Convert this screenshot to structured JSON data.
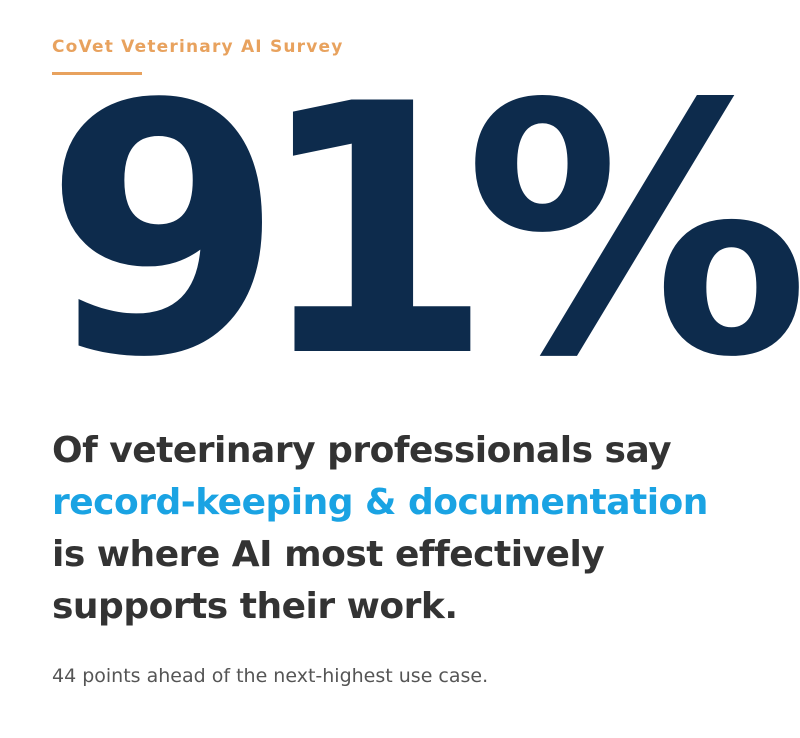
{
  "header": {
    "eyebrow": "CoVet Veterinary AI Survey"
  },
  "stat": {
    "value": "91%"
  },
  "headline": {
    "line1": "Of veterinary professionals say",
    "highlight": "record-keeping & documentation",
    "line3": "is where AI most effectively",
    "line4": "supports their work."
  },
  "footnote": {
    "text": "44 points ahead of the next-highest use case."
  },
  "colors": {
    "accent_orange": "#e8a25e",
    "stat_navy": "#0d2b4c",
    "highlight_blue": "#1aa3e3",
    "body_text": "#333333"
  }
}
